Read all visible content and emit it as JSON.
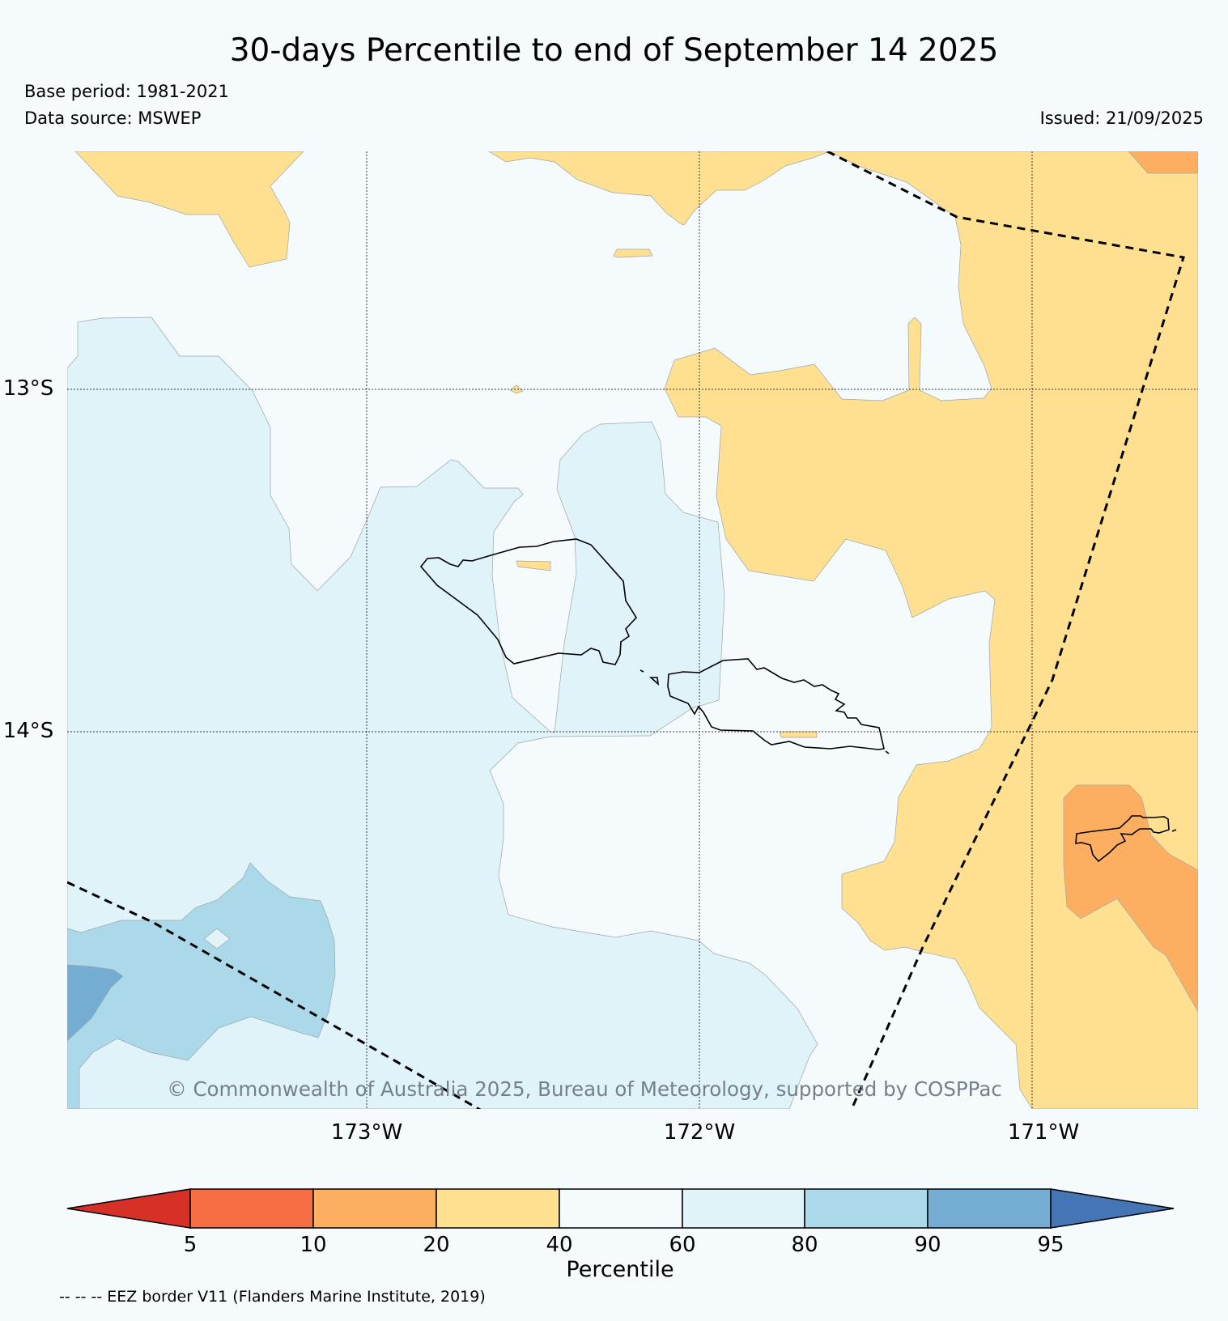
{
  "header": {
    "title": "30-days Percentile to end of September 14 2025",
    "base_period": "Base period: 1981-2021",
    "data_source": "Data source: MSWEP",
    "issued": "Issued: 21/09/2025"
  },
  "map": {
    "lat_labels": [
      "13°S",
      "14°S"
    ],
    "lon_labels": [
      "173°W",
      "172°W",
      "171°W"
    ],
    "copyright": "© Commonwealth of Australia 2025, Bureau of Meteorology, supported by COSPPac",
    "colors": {
      "c5_10": "#f46d43",
      "c10_20": "#fdae61",
      "c20_40": "#fee090",
      "c40_60": "#f5fafd",
      "c60_80": "#e0f3f8",
      "c80_90": "#abd9e9",
      "c90_95": "#74add1",
      "below5": "#d73027",
      "above95": "#4575b4"
    }
  },
  "colorbar": {
    "ticks": [
      "5",
      "10",
      "20",
      "40",
      "60",
      "80",
      "90",
      "95"
    ],
    "label": "Percentile"
  },
  "footer": {
    "eez_note": "-- -- -- EEZ border V11 (Flanders Marine Institute, 2019)"
  }
}
